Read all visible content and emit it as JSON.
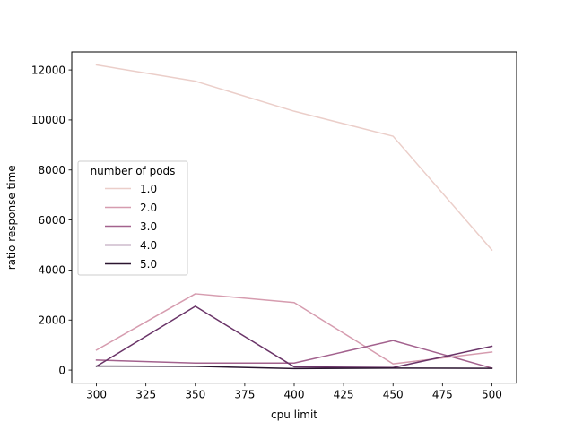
{
  "chart_data": {
    "type": "line",
    "xlabel": "cpu limit",
    "ylabel": "ratio response time",
    "x": [
      300,
      350,
      400,
      450,
      500
    ],
    "xlim": [
      287.5,
      512.5
    ],
    "ylim": [
      -520,
      12720
    ],
    "xticks": [
      300,
      325,
      350,
      375,
      400,
      425,
      450,
      475,
      500
    ],
    "yticks": [
      0,
      2000,
      4000,
      6000,
      8000,
      10000,
      12000
    ],
    "legend": {
      "title": "number of pods",
      "placement": "center-left"
    },
    "series": [
      {
        "name": "1.0",
        "color": "#ebcec9",
        "values": [
          12200,
          11550,
          10350,
          9350,
          4800
        ]
      },
      {
        "name": "2.0",
        "color": "#d69caf",
        "values": [
          800,
          3050,
          2700,
          250,
          720
        ]
      },
      {
        "name": "3.0",
        "color": "#a3628e",
        "values": [
          400,
          280,
          280,
          1180,
          80
        ]
      },
      {
        "name": "4.0",
        "color": "#6a3468",
        "values": [
          150,
          2550,
          130,
          100,
          950
        ]
      },
      {
        "name": "5.0",
        "color": "#2b1530",
        "values": [
          160,
          150,
          60,
          80,
          70
        ]
      }
    ]
  }
}
